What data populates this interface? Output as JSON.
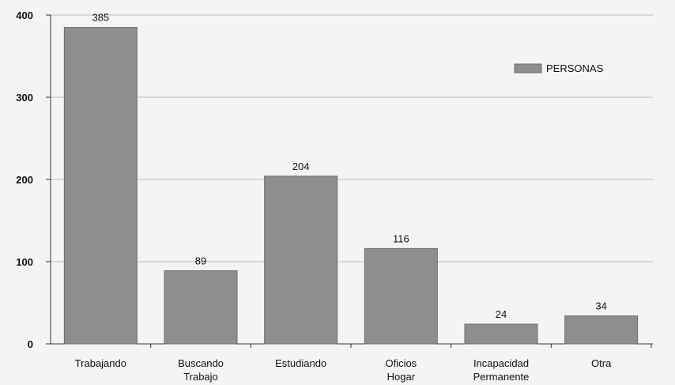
{
  "chart_data": {
    "type": "bar",
    "title": "",
    "xlabel": "",
    "ylabel": "",
    "categories": [
      [
        "Trabajando"
      ],
      [
        "Buscando",
        "Trabajo"
      ],
      [
        "Estudiando"
      ],
      [
        "Oficios",
        "Hogar"
      ],
      [
        "Incapacidad",
        "Permanente"
      ],
      [
        "Otra"
      ]
    ],
    "series": [
      {
        "name": "PERSONAS",
        "values": [
          385,
          89,
          204,
          116,
          24,
          34
        ],
        "color": "#8e8e8e"
      }
    ],
    "ylim": [
      0,
      400
    ],
    "yticks": [
      0,
      100,
      200,
      300,
      400
    ],
    "grid": true,
    "legend_position": "top-right"
  }
}
